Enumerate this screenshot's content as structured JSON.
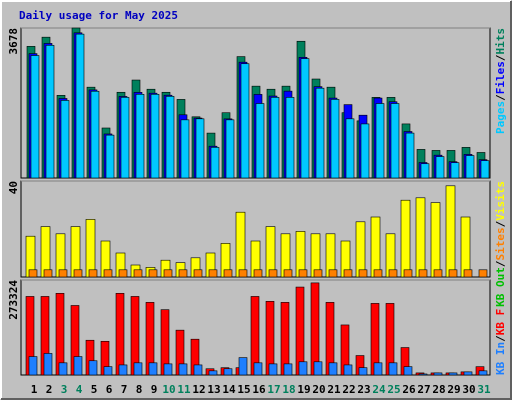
{
  "title": "Daily usage for May 2025",
  "legend_separator": "/",
  "chart_data": [
    {
      "type": "bar",
      "ylim": [
        0,
        3678
      ],
      "yticks": [
        3678
      ],
      "legend_anchor": "top",
      "series": [
        {
          "name": "Hits",
          "color": "#00805c",
          "values": [
            3228,
            3453,
            2027,
            3678,
            2227,
            1226,
            2102,
            2402,
            2177,
            2102,
            1927,
            1501,
            1101,
            1601,
            2977,
            2252,
            2177,
            2252,
            3353,
            2427,
            2227,
            1601,
            1401,
            1977,
            1977,
            1326,
            701,
            676,
            676,
            751,
            626
          ]
        },
        {
          "name": "Files",
          "color": "#0000ff",
          "values": [
            3050,
            3300,
            1950,
            3560,
            2160,
            1080,
            2000,
            2100,
            2080,
            2030,
            1550,
            1470,
            780,
            1450,
            2840,
            2050,
            2010,
            2130,
            2960,
            2240,
            1960,
            1800,
            1540,
            1960,
            1870,
            1140,
            380,
            560,
            400,
            580,
            450
          ]
        },
        {
          "name": "Pages",
          "color": "#00c8ff",
          "values": [
            3003,
            3253,
            1902,
            3528,
            2127,
            1051,
            1977,
            2052,
            2052,
            2002,
            1426,
            1451,
            751,
            1426,
            2802,
            1826,
            1977,
            1977,
            2927,
            2202,
            1927,
            1451,
            1326,
            1826,
            1826,
            1101,
            350,
            525,
            375,
            550,
            425
          ]
        }
      ]
    },
    {
      "type": "bar",
      "ylim": [
        0,
        40
      ],
      "yticks": [
        40
      ],
      "legend_anchor": "top",
      "series": [
        {
          "name": "Visits",
          "color": "#ffff00",
          "values": [
            17,
            21,
            18,
            21,
            24,
            15,
            10,
            5,
            4,
            7,
            6,
            8,
            10,
            14,
            27,
            15,
            21,
            18,
            19,
            18,
            18,
            15,
            23,
            25,
            18,
            32,
            33,
            31,
            38,
            25,
            0
          ]
        },
        {
          "name": "Sites",
          "color": "#ff8000",
          "values": [
            3,
            3,
            3,
            3,
            3,
            3,
            3,
            3,
            3,
            3,
            3,
            3,
            3,
            3,
            3,
            3,
            3,
            3,
            3,
            3,
            3,
            3,
            3,
            3,
            3,
            3,
            3,
            3,
            3,
            3,
            3
          ]
        },
        {
          "name": "KB Out",
          "color": "#00c000",
          "values": [
            0,
            0,
            0,
            0,
            0,
            0,
            0,
            0,
            0,
            0,
            0,
            0,
            0,
            0,
            0,
            0,
            0,
            0,
            0,
            0,
            0,
            0,
            0,
            0,
            0,
            0,
            0,
            0,
            0,
            0,
            0
          ]
        }
      ]
    },
    {
      "type": "bar",
      "ylim": [
        0,
        273324
      ],
      "yticks": [
        273324
      ],
      "legend_anchor": "bottom",
      "categories": [
        "1",
        "2",
        "3",
        "4",
        "5",
        "6",
        "7",
        "8",
        "9",
        "10",
        "11",
        "12",
        "13",
        "14",
        "15",
        "16",
        "17",
        "18",
        "19",
        "20",
        "21",
        "22",
        "23",
        "24",
        "25",
        "26",
        "27",
        "28",
        "29",
        "30",
        "31"
      ],
      "category_colors": [
        "#000000",
        "#000000",
        "#00805c",
        "#00805c",
        "#000000",
        "#000000",
        "#000000",
        "#000000",
        "#000000",
        "#00805c",
        "#00805c",
        "#000000",
        "#000000",
        "#000000",
        "#000000",
        "#000000",
        "#00805c",
        "#00805c",
        "#000000",
        "#000000",
        "#000000",
        "#000000",
        "#000000",
        "#00805c",
        "#00805c",
        "#000000",
        "#000000",
        "#000000",
        "#000000",
        "#000000",
        "#00805c"
      ],
      "series": [
        {
          "name": "KB F",
          "color": "#ff0000",
          "values": [
            226000,
            226000,
            235000,
            200000,
            100000,
            97000,
            235000,
            226000,
            209000,
            188000,
            129000,
            103000,
            18000,
            21000,
            21000,
            226000,
            212000,
            209000,
            253000,
            265000,
            209000,
            144000,
            56000,
            206000,
            206000,
            79000,
            6000,
            6000,
            6000,
            9000,
            24000
          ]
        },
        {
          "name": "KB In",
          "color": "#1e7fff",
          "values": [
            53000,
            62000,
            35000,
            53000,
            41000,
            24000,
            29000,
            35000,
            35000,
            32000,
            32000,
            29000,
            12000,
            18000,
            50000,
            35000,
            32000,
            32000,
            38000,
            38000,
            35000,
            29000,
            21000,
            35000,
            35000,
            24000,
            3000,
            6000,
            6000,
            9000,
            12000
          ]
        }
      ]
    }
  ]
}
